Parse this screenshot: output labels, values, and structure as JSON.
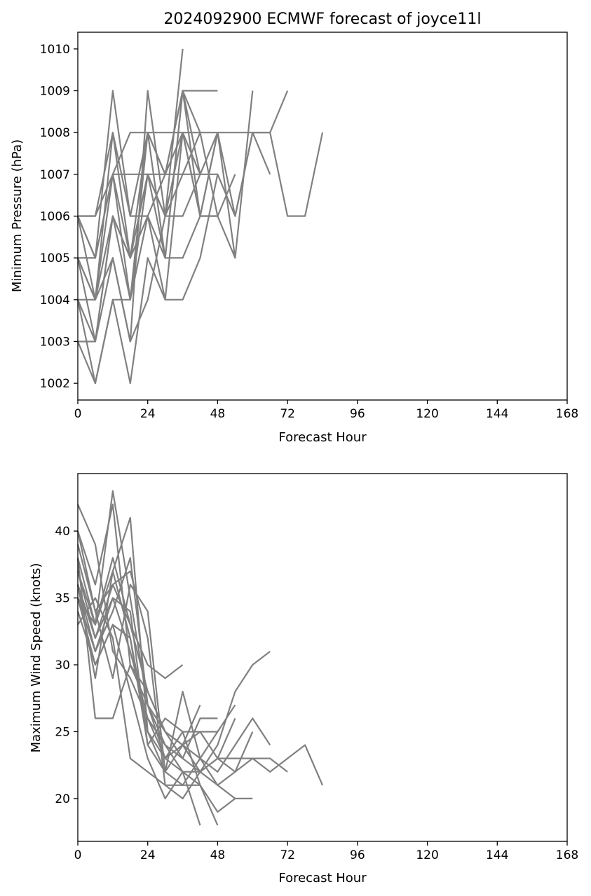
{
  "chart_data": [
    {
      "type": "line",
      "title": "2024092900 ECMWF forecast of joyce11l",
      "xlabel": "Forecast Hour",
      "ylabel": "Minimum Pressure (hPa)",
      "xlim": [
        0,
        168
      ],
      "ylim": [
        1001.6,
        1010.4
      ],
      "xticks": [
        0,
        24,
        48,
        72,
        96,
        120,
        144,
        168
      ],
      "yticks": [
        1002,
        1003,
        1004,
        1005,
        1006,
        1007,
        1008,
        1009,
        1010
      ],
      "grid": false,
      "line_color": "#808080",
      "series": [
        {
          "x": [
            0,
            6,
            12,
            18,
            24,
            30,
            36,
            42,
            48,
            54
          ],
          "y": [
            1006,
            1006,
            1008,
            1006,
            1008,
            1007,
            1009,
            1008,
            1006,
            1007
          ]
        },
        {
          "x": [
            0,
            6,
            12,
            18,
            24,
            30,
            36,
            42,
            48,
            54,
            60,
            66,
            72,
            78,
            84
          ],
          "y": [
            1006,
            1006,
            1007,
            1008,
            1008,
            1008,
            1008,
            1008,
            1008,
            1008,
            1008,
            1008,
            1006,
            1006,
            1008
          ]
        },
        {
          "x": [
            0,
            6,
            12,
            18,
            24,
            30,
            36,
            42,
            48
          ],
          "y": [
            1005,
            1005,
            1007,
            1007,
            1007,
            1007,
            1007,
            1007,
            1007
          ]
        },
        {
          "x": [
            0,
            6,
            12,
            18,
            24,
            30,
            36,
            42,
            48
          ],
          "y": [
            1006,
            1005,
            1009,
            1006,
            1006,
            1007,
            1009,
            1009,
            1009
          ]
        },
        {
          "x": [
            0,
            6,
            12,
            18,
            24,
            30,
            36,
            42,
            48,
            54,
            60,
            66
          ],
          "y": [
            1005,
            1004,
            1006,
            1004,
            1008,
            1005,
            1009,
            1006,
            1008,
            1006,
            1008,
            1007
          ]
        },
        {
          "x": [
            0,
            6,
            12,
            18,
            24,
            30,
            36
          ],
          "y": [
            1004,
            1004,
            1007,
            1004,
            1007,
            1006,
            1010
          ]
        },
        {
          "x": [
            0,
            6,
            12,
            18,
            24,
            30,
            36,
            42,
            48,
            54,
            60
          ],
          "y": [
            1004,
            1003,
            1005,
            1003,
            1009,
            1006,
            1006,
            1007,
            1008,
            1005,
            1009
          ]
        },
        {
          "x": [
            0,
            6,
            12,
            18,
            24,
            30,
            36,
            42,
            48,
            54,
            60,
            66,
            72
          ],
          "y": [
            1003,
            1002,
            1004,
            1002,
            1005,
            1004,
            1004,
            1005,
            1007,
            1006,
            1008,
            1008,
            1009
          ]
        },
        {
          "x": [
            0,
            6,
            12,
            18,
            24,
            30,
            36,
            42,
            48,
            54
          ],
          "y": [
            1005,
            1003,
            1006,
            1005,
            1006,
            1004,
            1008,
            1006,
            1006,
            1005
          ]
        },
        {
          "x": [
            0,
            6,
            12,
            18,
            24,
            30,
            36,
            42
          ],
          "y": [
            1006,
            1004,
            1005,
            1003,
            1004,
            1006,
            1008,
            1007
          ]
        },
        {
          "x": [
            0,
            6,
            12,
            18,
            24,
            30,
            36,
            42,
            48
          ],
          "y": [
            1004,
            1002,
            1004,
            1004,
            1006,
            1005,
            1005,
            1006,
            1006
          ]
        },
        {
          "x": [
            0,
            6,
            12,
            18,
            24,
            30,
            36,
            42
          ],
          "y": [
            1005,
            1004,
            1008,
            1005,
            1007,
            1006,
            1007,
            1008
          ]
        },
        {
          "x": [
            0,
            6,
            12,
            18,
            24,
            30,
            36,
            42,
            48
          ],
          "y": [
            1006,
            1005,
            1007,
            1005,
            1008,
            1007,
            1008,
            1006,
            1008
          ]
        },
        {
          "x": [
            0,
            6,
            12,
            18,
            24,
            30,
            36,
            42
          ],
          "y": [
            1003,
            1003,
            1006,
            1005,
            1007,
            1005,
            1009,
            1007
          ]
        }
      ]
    },
    {
      "type": "line",
      "title": "",
      "xlabel": "Forecast Hour",
      "ylabel": "Maximum Wind Speed (knots)",
      "xlim": [
        0,
        168
      ],
      "ylim": [
        16.8,
        44.3
      ],
      "xticks": [
        0,
        24,
        48,
        72,
        96,
        120,
        144,
        168
      ],
      "yticks": [
        20,
        25,
        30,
        35,
        40
      ],
      "grid": false,
      "line_color": "#808080",
      "series": [
        {
          "x": [
            0,
            6,
            12,
            18,
            24,
            30,
            36,
            42,
            48,
            54,
            60,
            66,
            72,
            78,
            84
          ],
          "y": [
            38,
            33,
            43,
            35,
            27,
            24,
            23,
            22,
            23,
            23,
            23,
            22,
            23,
            24,
            21
          ]
        },
        {
          "x": [
            0,
            6,
            12,
            18,
            24,
            30,
            36,
            42,
            48,
            54,
            60,
            66
          ],
          "y": [
            42,
            39,
            31,
            29,
            26,
            23,
            22,
            22,
            24,
            28,
            30,
            31
          ]
        },
        {
          "x": [
            0,
            6,
            12,
            18,
            24,
            30,
            36,
            42,
            48,
            54,
            60,
            66,
            72
          ],
          "y": [
            40,
            36,
            42,
            30,
            27,
            25,
            24,
            25,
            23,
            22,
            23,
            23,
            22
          ]
        },
        {
          "x": [
            0,
            6,
            12,
            18,
            24,
            30,
            36,
            42,
            48,
            54,
            60,
            66
          ],
          "y": [
            38,
            26,
            26,
            30,
            28,
            25,
            24,
            23,
            22,
            24,
            26,
            24
          ]
        },
        {
          "x": [
            0,
            6,
            12,
            18,
            24,
            30,
            36,
            42,
            48,
            54
          ],
          "y": [
            36,
            29,
            37,
            41,
            25,
            22,
            21,
            23,
            21,
            20
          ]
        },
        {
          "x": [
            0,
            6,
            12,
            18,
            24,
            30,
            36
          ],
          "y": [
            37,
            33,
            38,
            33,
            30,
            29,
            30
          ]
        },
        {
          "x": [
            0,
            6,
            12,
            18,
            24,
            30,
            36,
            42,
            48,
            54
          ],
          "y": [
            35,
            31,
            35,
            34,
            24,
            22,
            28,
            23,
            25,
            27
          ]
        },
        {
          "x": [
            0,
            6,
            12,
            18,
            24,
            30,
            36,
            42,
            48
          ],
          "y": [
            36,
            32,
            36,
            37,
            32,
            21,
            21,
            21,
            18
          ]
        },
        {
          "x": [
            0,
            6,
            12,
            18,
            24,
            30,
            36,
            42,
            48,
            54,
            60
          ],
          "y": [
            34,
            30,
            33,
            28,
            23,
            20,
            22,
            21,
            19,
            20,
            20
          ]
        },
        {
          "x": [
            0,
            6,
            12,
            18,
            24,
            30,
            36,
            42,
            48,
            54
          ],
          "y": [
            39,
            34,
            29,
            36,
            34,
            22,
            24,
            22,
            23,
            26
          ]
        },
        {
          "x": [
            0,
            6,
            12,
            18,
            24,
            30,
            36,
            42
          ],
          "y": [
            37,
            32,
            35,
            31,
            26,
            24,
            22,
            18
          ]
        },
        {
          "x": [
            0,
            6,
            12,
            18,
            24,
            30,
            36,
            42,
            48
          ],
          "y": [
            35,
            33,
            37,
            32,
            25,
            23,
            25,
            25,
            25
          ]
        },
        {
          "x": [
            0,
            6,
            12,
            18,
            24,
            30,
            36,
            42
          ],
          "y": [
            36,
            31,
            34,
            38,
            27,
            23,
            24,
            27
          ]
        },
        {
          "x": [
            0,
            6,
            12,
            18,
            24,
            30,
            36,
            42,
            48,
            54,
            60
          ],
          "y": [
            33,
            35,
            32,
            23,
            22,
            21,
            20,
            22,
            21,
            22,
            25
          ]
        },
        {
          "x": [
            0,
            6,
            12,
            18,
            24,
            30,
            36,
            42,
            48
          ],
          "y": [
            40,
            34,
            36,
            33,
            28,
            25,
            23,
            26,
            26
          ]
        },
        {
          "x": [
            0,
            6,
            12,
            18,
            24,
            30,
            36,
            42
          ],
          "y": [
            35,
            30,
            33,
            32,
            24,
            26,
            25,
            21
          ]
        }
      ]
    }
  ]
}
